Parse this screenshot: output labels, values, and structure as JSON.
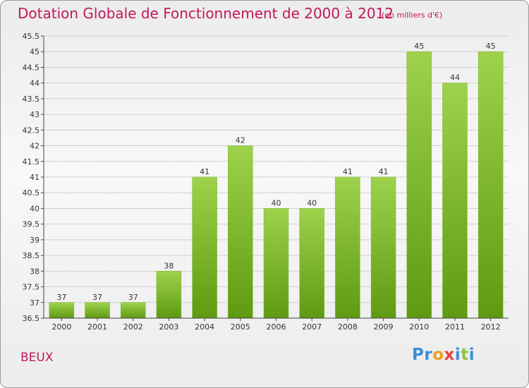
{
  "header": {
    "title": "Dotation Globale de Fonctionnement de 2000 à 2012",
    "subtitle": "(en milliers d'€)"
  },
  "footer": {
    "commune": "BEUX",
    "logo_text": "Proxiti",
    "logo_letters": [
      "P",
      "r",
      "o",
      "x",
      "i",
      "t",
      "i"
    ]
  },
  "colors": {
    "title": "#c2185b",
    "bar_light": "#9ed24c",
    "bar_dark": "#5e9a12",
    "axis": "#444444",
    "grid": "#cfcfcf",
    "logo": [
      "#3a8fd9",
      "#3a8fd9",
      "#f0a020",
      "#e8413a",
      "#3a8fd9",
      "#8cc63f",
      "#3a8fd9"
    ]
  },
  "chart_data": {
    "type": "bar",
    "categories": [
      "2000",
      "2001",
      "2002",
      "2003",
      "2004",
      "2005",
      "2006",
      "2007",
      "2008",
      "2009",
      "2010",
      "2011",
      "2012"
    ],
    "values": [
      37,
      37,
      37,
      38,
      41,
      42,
      40,
      40,
      41,
      41,
      45,
      44,
      45
    ],
    "data_labels": [
      "37",
      "37",
      "37",
      "38",
      "41",
      "42",
      "40",
      "40",
      "41",
      "41",
      "45",
      "44",
      "45"
    ],
    "title": "Dotation Globale de Fonctionnement de 2000 à 2012",
    "subtitle": "(en milliers d'€)",
    "ylim": [
      36.5,
      45.5
    ],
    "yticks": [
      36.5,
      37,
      37.5,
      38,
      38.5,
      39,
      39.5,
      40,
      40.5,
      41,
      41.5,
      42,
      42.5,
      43,
      43.5,
      44,
      44.5,
      45,
      45.5
    ],
    "ytick_labels": [
      "36.5",
      "37",
      "37.5",
      "38",
      "38.5",
      "39",
      "39.5",
      "40",
      "40.5",
      "41",
      "41.5",
      "42",
      "42.5",
      "43",
      "43.5",
      "44",
      "44.5",
      "45",
      "45.5"
    ],
    "grid": true,
    "legend": "none"
  }
}
